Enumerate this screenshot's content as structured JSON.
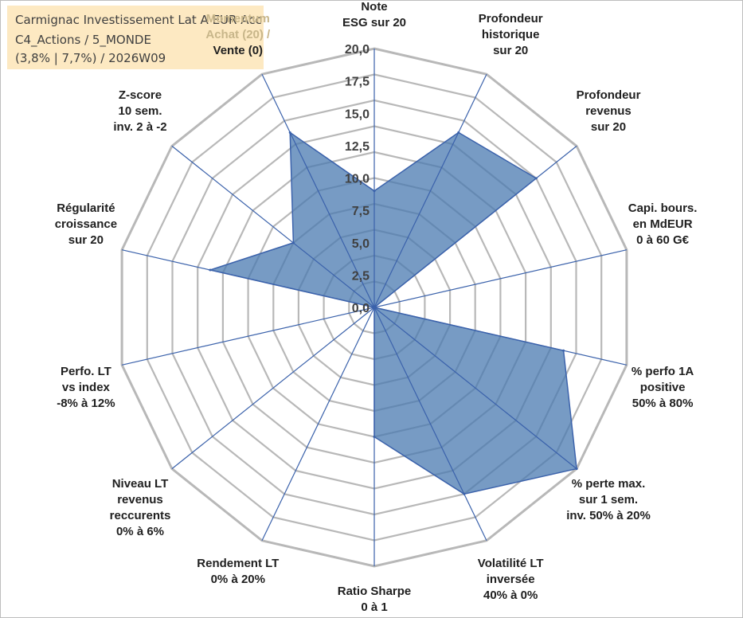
{
  "info": {
    "line1": "Carmignac Investissement Lat A EUR Acc",
    "line2": "C4_Actions / 5_MONDE",
    "line3": "(3,8% | 7,7%) / 2026W09"
  },
  "chart_data": {
    "type": "radar",
    "title": "Carmignac Investissement Lat A EUR Acc",
    "rmin": 0,
    "rmax": 20,
    "ticks": [
      "0,0",
      "2,5",
      "5,0",
      "7,5",
      "10,0",
      "12,5",
      "15,0",
      "17,5",
      "20,0"
    ],
    "tick_values": [
      0,
      2.5,
      5,
      7.5,
      10,
      12.5,
      15,
      17.5,
      20
    ],
    "grid_rings": 10,
    "fill_color": "#4a79b0",
    "axis_color": "#3b62ab",
    "grid_color": "#b8b8b8",
    "axes": [
      {
        "label": "Note\nESG sur 20",
        "value": 9
      },
      {
        "label": "Profondeur\nhistorique\nsur 20",
        "value": 15
      },
      {
        "label": "Profondeur\nrevenus\nsur 20",
        "value": 16
      },
      {
        "label": "Capi. bours.\nen MdEUR\n0 à 60 G€",
        "value": 0
      },
      {
        "label": "% perfo 1A\npositive\n50% à 80%",
        "value": 15
      },
      {
        "label": "% perte max.\nsur 1 sem.\ninv. 50% à 20%",
        "value": 20
      },
      {
        "label": "Volatilité LT\ninversée\n40% à 0%",
        "value": 16
      },
      {
        "label": "Ratio Sharpe\n0 à 1",
        "value": 10
      },
      {
        "label": "Rendement LT\n0% à 20%",
        "value": 0
      },
      {
        "label": "Niveau LT\nrevenus\nreccurents\n0% à 6%",
        "value": 0
      },
      {
        "label": "Perfo. LT\nvs index\n-8% à 12%",
        "value": 0
      },
      {
        "label": "Régularité\ncroissance\nsur 20",
        "value": 13
      },
      {
        "label": "Z-score\n10 sem.\ninv. 2 à -2",
        "value": 8
      },
      {
        "label": "Momentum\nAchat (20) /\nVente (0)",
        "value": 15
      }
    ]
  }
}
